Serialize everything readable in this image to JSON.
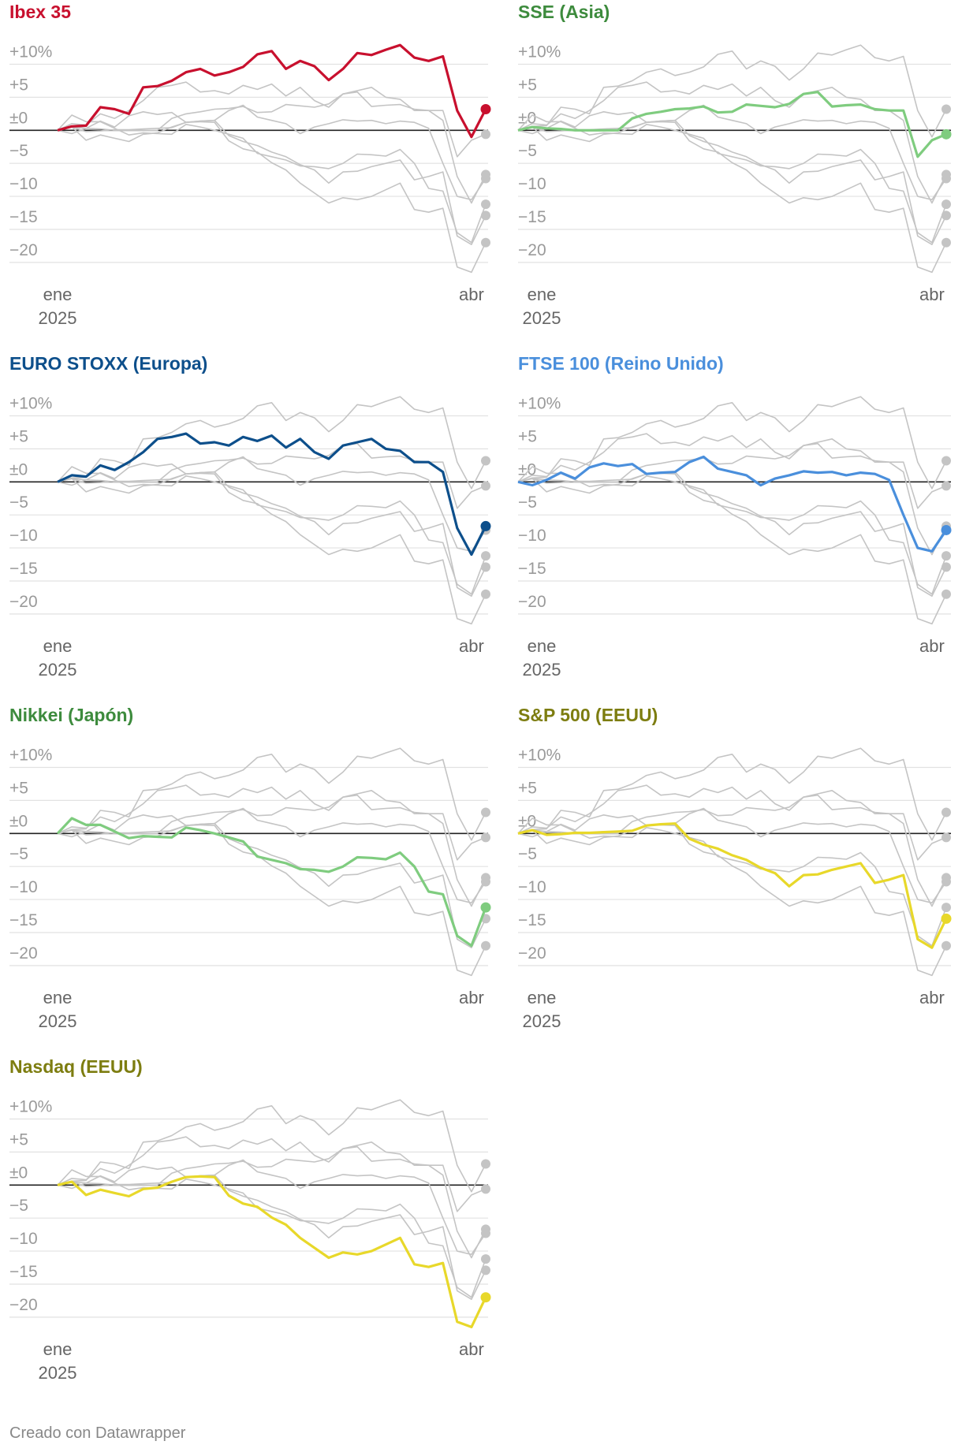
{
  "chart_data": {
    "type": "line",
    "categories": [
      "ene",
      null,
      null,
      null,
      null,
      null,
      null,
      null,
      null,
      null,
      null,
      null,
      null,
      null,
      null,
      null,
      null,
      null,
      null,
      null,
      null,
      null,
      null,
      null,
      null,
      null,
      null,
      null,
      null,
      "abr",
      null
    ],
    "year_label": "2025",
    "ylim": [
      -23,
      14
    ],
    "yticks": [
      {
        "value": 10,
        "label": "+10%"
      },
      {
        "value": 5,
        "label": "+5"
      },
      {
        "value": 0,
        "label": "±0"
      },
      {
        "value": -5,
        "label": "−5"
      },
      {
        "value": -10,
        "label": "−10"
      },
      {
        "value": -15,
        "label": "−15"
      },
      {
        "value": -20,
        "label": "−20"
      }
    ],
    "grid": true,
    "context_color": "#c4c4c4",
    "series": [
      {
        "name": "Ibex 35",
        "color": "#c8102e",
        "title_color": "#c8102e",
        "values": [
          0,
          0.6,
          0.7,
          3.5,
          3.2,
          2.5,
          6.5,
          6.7,
          7.5,
          8.8,
          9.3,
          8.3,
          8.8,
          9.6,
          11.5,
          12.0,
          9.3,
          10.5,
          9.7,
          7.6,
          9.3,
          11.7,
          11.4,
          12.2,
          12.9,
          11.0,
          10.5,
          11.2,
          3.0,
          -1.0,
          3.2
        ]
      },
      {
        "name": "SSE (Asia)",
        "color": "#7fcc7f",
        "title_color": "#3d8b3d",
        "values": [
          0,
          0.5,
          0.3,
          0.2,
          0,
          0,
          0,
          0,
          1.8,
          2.5,
          2.8,
          3.2,
          3.3,
          3.6,
          2.7,
          2.8,
          3.9,
          3.7,
          3.5,
          4.0,
          5.5,
          5.8,
          3.6,
          3.8,
          3.9,
          3.2,
          3.0,
          3.0,
          -4.0,
          -1.5,
          -0.6
        ]
      },
      {
        "name": "EURO STOXX (Europa)",
        "color": "#0d4f8b",
        "title_color": "#0d4f8b",
        "values": [
          0,
          1,
          0.8,
          2.5,
          1.8,
          3,
          4.5,
          6.5,
          6.8,
          7.3,
          5.8,
          6,
          5.5,
          6.8,
          6.2,
          7,
          5.2,
          6.5,
          4.5,
          3.5,
          5.5,
          6,
          6.5,
          5,
          4.7,
          3,
          3,
          1.5,
          -7,
          -11,
          -6.7
        ]
      },
      {
        "name": "FTSE 100 (Reino Unido)",
        "color": "#4a8fdc",
        "title_color": "#4a8fdc",
        "values": [
          0,
          -0.5,
          0.3,
          1.4,
          0.5,
          2.2,
          2.8,
          2.4,
          2.7,
          1.2,
          1.4,
          1.5,
          3,
          3.8,
          2,
          1.5,
          1,
          -0.5,
          0.5,
          1,
          1.6,
          1.4,
          1.5,
          1,
          1.4,
          1.2,
          0.3,
          -5,
          -10,
          -10.5,
          -7.3
        ]
      },
      {
        "name": "Nikkei (Japón)",
        "color": "#7fcc7f",
        "title_color": "#3d8b3d",
        "values": [
          0,
          2.3,
          1.3,
          1.3,
          0.3,
          -0.7,
          -0.4,
          -0.5,
          -0.6,
          0.9,
          0.5,
          0,
          -0.6,
          -1.2,
          -3.5,
          -4.0,
          -4.5,
          -5.4,
          -5.5,
          -5.8,
          -5.0,
          -3.6,
          -3.7,
          -3.9,
          -2.9,
          -5.0,
          -8.8,
          -9.2,
          -15.5,
          -17,
          -11.2
        ]
      },
      {
        "name": "S&P 500 (EEUU)",
        "color": "#e8d82a",
        "title_color": "#7d7d10",
        "values": [
          0,
          0.5,
          -0.2,
          -0.1,
          0.1,
          0.1,
          0.2,
          0.3,
          0.4,
          1.2,
          1.4,
          1.5,
          -0.8,
          -1.7,
          -2.3,
          -3.3,
          -4.0,
          -5.2,
          -6.0,
          -8.0,
          -6.3,
          -6.2,
          -5.5,
          -5.0,
          -4.5,
          -7.5,
          -7.0,
          -6.3,
          -16.0,
          -17.3,
          -12.9
        ]
      },
      {
        "name": "Nasdaq (EEUU)",
        "color": "#e8d82a",
        "title_color": "#7d7d10",
        "values": [
          0,
          0.5,
          -1.5,
          -0.7,
          -1.2,
          -1.7,
          -0.6,
          -0.4,
          0.5,
          1.2,
          1.3,
          1.2,
          -1.6,
          -2.8,
          -3.3,
          -4.9,
          -6.0,
          -8.0,
          -9.5,
          -11.0,
          -10.2,
          -10.5,
          -10.0,
          -9.0,
          -8.0,
          -12.0,
          -12.4,
          -11.8,
          -20.7,
          -21.5,
          -17.0
        ]
      }
    ],
    "note": "Creado con Datawrapper"
  }
}
